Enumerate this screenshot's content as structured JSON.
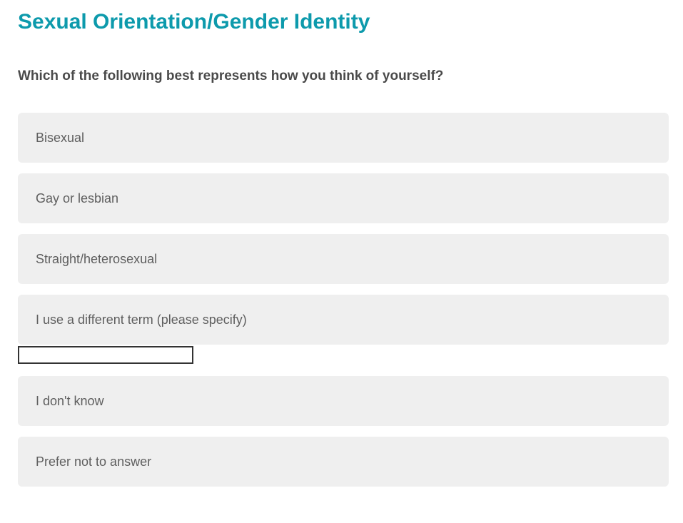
{
  "page": {
    "title": "Sexual Orientation/Gender Identity",
    "question": "Which of the following best represents how you think of yourself?"
  },
  "options": [
    {
      "label": "Bisexual"
    },
    {
      "label": "Gay or lesbian"
    },
    {
      "label": "Straight/heterosexual"
    },
    {
      "label": "I use a different term (please specify)",
      "has_text_input": true
    },
    {
      "label": "I don't know"
    },
    {
      "label": "Prefer not to answer"
    }
  ],
  "other_input": {
    "value": ""
  },
  "colors": {
    "heading": "#0d9aac",
    "question_text": "#4a4a4a",
    "option_text": "#5e5e5e",
    "option_bg": "#efefef",
    "input_border": "#333333",
    "page_bg": "#ffffff"
  }
}
